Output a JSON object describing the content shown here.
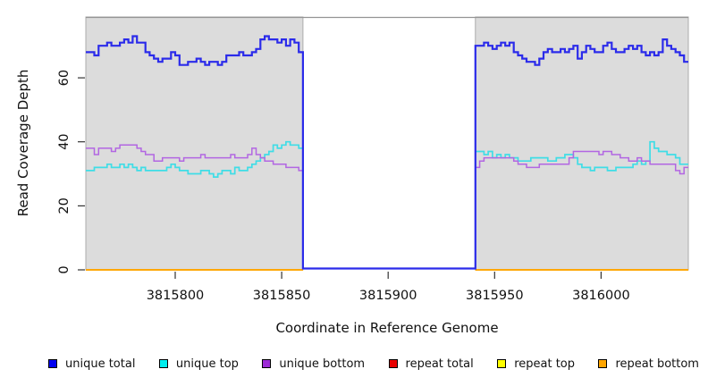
{
  "chart_data": {
    "type": "line",
    "subtype": "step-coverage",
    "title": "",
    "xlabel": "Coordinate in Reference Genome",
    "ylabel": "Read Coverage Depth",
    "xlim": [
      3815758,
      3816041
    ],
    "ylim": [
      0,
      79
    ],
    "step_bp": 2,
    "grid": false,
    "x_axis": {
      "ticks": [
        {
          "pos": 3815800,
          "label": "3815800"
        },
        {
          "pos": 3815850,
          "label": "3815850"
        },
        {
          "pos": 3815900,
          "label": "3815900"
        },
        {
          "pos": 3815950,
          "label": "3815950"
        },
        {
          "pos": 3816000,
          "label": "3816000"
        }
      ]
    },
    "y_axis": {
      "ticks": [
        {
          "pos": 0,
          "label": "0"
        },
        {
          "pos": 20,
          "label": "20"
        },
        {
          "pos": 40,
          "label": "40"
        },
        {
          "pos": 60,
          "label": "60"
        }
      ]
    },
    "shaded_regions": [
      {
        "start": 3815758,
        "end": 3815860
      },
      {
        "start": 3815941,
        "end": 3816041
      }
    ],
    "gap": {
      "start": 3815860,
      "end": 3815941
    },
    "colors": {
      "region_fill": "#DCDCDC",
      "region_border": "#ACACAC",
      "top_border": "#949494",
      "tick": "#333333",
      "text": "#111111"
    },
    "series": [
      {
        "name": "unique total",
        "color": "#2B2BEA",
        "region1_start": 3815758,
        "region1": [
          68,
          68,
          67,
          70,
          70,
          71,
          70,
          70,
          71,
          72,
          71,
          73,
          71,
          71,
          68,
          67,
          66,
          65,
          66,
          66,
          68,
          67,
          64,
          64,
          65,
          65,
          66,
          65,
          64,
          65,
          65,
          64,
          65,
          67,
          67,
          67,
          68,
          67,
          67,
          68,
          69,
          72,
          73,
          72,
          72,
          71,
          72,
          70,
          72,
          71,
          68
        ],
        "gap_value": 0,
        "region2_start": 3815941,
        "region2": [
          70,
          70,
          71,
          70,
          69,
          70,
          71,
          70,
          71,
          68,
          67,
          66,
          65,
          65,
          64,
          66,
          68,
          69,
          68,
          68,
          69,
          68,
          69,
          70,
          66,
          68,
          70,
          69,
          68,
          68,
          70,
          71,
          69,
          68,
          68,
          69,
          70,
          69,
          70,
          68,
          67,
          68,
          67,
          68,
          72,
          70,
          69,
          68,
          67,
          65
        ]
      },
      {
        "name": "unique top",
        "color": "#3FDDE6",
        "region1_start": 3815758,
        "region1": [
          31,
          31,
          32,
          32,
          32,
          33,
          32,
          32,
          33,
          32,
          33,
          32,
          31,
          32,
          31,
          31,
          31,
          31,
          31,
          32,
          33,
          32,
          31,
          31,
          30,
          30,
          30,
          31,
          31,
          30,
          29,
          30,
          31,
          31,
          30,
          32,
          31,
          31,
          32,
          33,
          34,
          35,
          36,
          37,
          39,
          38,
          39,
          40,
          39,
          39,
          38
        ],
        "region2_start": 3815941,
        "region2": [
          37,
          37,
          36,
          37,
          35,
          36,
          35,
          36,
          35,
          35,
          34,
          34,
          34,
          35,
          35,
          35,
          35,
          34,
          34,
          35,
          35,
          36,
          36,
          35,
          33,
          32,
          32,
          31,
          32,
          32,
          32,
          31,
          31,
          32,
          32,
          32,
          32,
          33,
          34,
          33,
          34,
          40,
          38,
          37,
          37,
          36,
          36,
          35,
          33,
          33
        ]
      },
      {
        "name": "unique bottom",
        "color": "#B266E2",
        "region1_start": 3815758,
        "region1": [
          38,
          38,
          36,
          38,
          38,
          38,
          37,
          38,
          39,
          39,
          39,
          39,
          38,
          37,
          36,
          36,
          34,
          34,
          35,
          35,
          35,
          35,
          34,
          35,
          35,
          35,
          35,
          36,
          35,
          35,
          35,
          35,
          35,
          35,
          36,
          35,
          35,
          35,
          36,
          38,
          36,
          35,
          34,
          34,
          33,
          33,
          33,
          32,
          32,
          32,
          31
        ],
        "region2_start": 3815941,
        "region2": [
          32,
          34,
          35,
          35,
          35,
          35,
          35,
          35,
          35,
          34,
          33,
          33,
          32,
          32,
          32,
          33,
          33,
          33,
          33,
          33,
          33,
          33,
          35,
          37,
          37,
          37,
          37,
          37,
          37,
          36,
          37,
          37,
          36,
          36,
          35,
          35,
          34,
          34,
          35,
          34,
          34,
          33,
          33,
          33,
          33,
          33,
          33,
          31,
          30,
          32
        ]
      },
      {
        "name": "repeat total",
        "color": "#E80000",
        "constant": 0
      },
      {
        "name": "repeat top",
        "color": "#FFFF00",
        "constant": 0
      },
      {
        "name": "repeat bottom",
        "color": "#FFA500",
        "constant": 0
      }
    ],
    "legend": [
      {
        "label": "unique total",
        "color": "#0000F0"
      },
      {
        "label": "unique top",
        "color": "#00EEEE"
      },
      {
        "label": "unique bottom",
        "color": "#9C2BD6"
      },
      {
        "label": "repeat total",
        "color": "#E80000"
      },
      {
        "label": "repeat top",
        "color": "#FFFF00"
      },
      {
        "label": "repeat bottom",
        "color": "#FFA500"
      }
    ]
  }
}
